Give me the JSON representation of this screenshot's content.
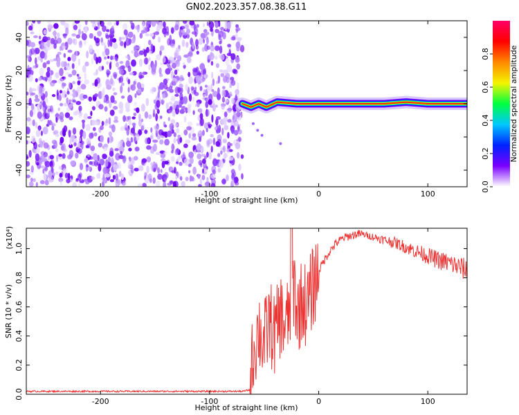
{
  "title": "GN02.2023.357.08.38.G11",
  "colors": {
    "snr_line": "#ee3333",
    "axis": "#000000",
    "colormap": [
      "#ffffff",
      "#7a00ff",
      "#0022ff",
      "#00c8ff",
      "#00ff40",
      "#f4f400",
      "#ff8800",
      "#ff0000",
      "#ff0066"
    ]
  },
  "chart_data": [
    {
      "type": "heatmap",
      "xlabel": "Height of straight line (km)",
      "ylabel": "Frequency (Hz)",
      "xlim": [
        -268,
        136
      ],
      "ylim": [
        -50,
        50
      ],
      "x_ticks": [
        -200,
        -100,
        0,
        100
      ],
      "x_tick_labels": [
        "-200",
        "-100",
        "0",
        "100"
      ],
      "y_ticks": [
        -40,
        -20,
        0,
        20,
        40
      ],
      "y_tick_labels": [
        "-40",
        "-20",
        "0",
        "20",
        "40"
      ],
      "noise_region_x": [
        -268,
        -70
      ],
      "signal_line": {
        "frequency_hz": 0,
        "x_range": [
          -70,
          136
        ],
        "center_offsets": [
          {
            "x": -70,
            "y": 0
          },
          {
            "x": -62,
            "y": -2
          },
          {
            "x": -55,
            "y": 0
          },
          {
            "x": -48,
            "y": -2
          },
          {
            "x": -38,
            "y": 1
          },
          {
            "x": -20,
            "y": 0
          },
          {
            "x": 0,
            "y": 0
          },
          {
            "x": 30,
            "y": 0
          },
          {
            "x": 60,
            "y": 0
          },
          {
            "x": 80,
            "y": 1
          },
          {
            "x": 100,
            "y": 0
          },
          {
            "x": 136,
            "y": 0
          }
        ]
      },
      "colorbar": {
        "label": "Normalized spectral amplitude",
        "range": [
          0,
          1
        ],
        "ticks": [
          0.0,
          0.2,
          0.4,
          0.6,
          0.8
        ],
        "tick_labels": [
          "0.0",
          "0.2",
          "0.4",
          "0.6",
          "0.8"
        ]
      }
    },
    {
      "type": "line",
      "xlabel": "Height of straight line (km)",
      "ylabel": "SNR (10 * v/v)",
      "y_multiplier": "(x10⁴)",
      "xlim": [
        -268,
        136
      ],
      "ylim": [
        0,
        1.14
      ],
      "x_ticks": [
        -200,
        -100,
        0,
        100
      ],
      "x_tick_labels": [
        "-200",
        "-100",
        "0",
        "100"
      ],
      "y_ticks": [
        0.0,
        0.2,
        0.4,
        0.6,
        0.8,
        1.0
      ],
      "y_tick_labels": [
        "0.0",
        "0.2",
        "0.4",
        "0.6",
        "0.8",
        "1.0"
      ],
      "series": [
        {
          "x": [
            -268,
            -240,
            -200,
            -150,
            -100,
            -70,
            -63,
            -60,
            -55,
            -50,
            -45,
            -40,
            -35,
            -30,
            -25,
            -22,
            -20,
            -15,
            -10,
            -5,
            0,
            5,
            10,
            15,
            20,
            25,
            30,
            35,
            40,
            45,
            50,
            60,
            70,
            80,
            90,
            100,
            110,
            120,
            130,
            136
          ],
          "y": [
            0.02,
            0.02,
            0.02,
            0.02,
            0.02,
            0.02,
            0.03,
            0.3,
            0.45,
            0.35,
            0.5,
            0.4,
            0.55,
            0.45,
            0.65,
            0.75,
            0.55,
            0.65,
            0.6,
            0.75,
            0.85,
            0.92,
            0.98,
            1.03,
            1.06,
            1.08,
            1.09,
            1.1,
            1.1,
            1.09,
            1.08,
            1.06,
            1.04,
            1.01,
            0.98,
            0.95,
            0.92,
            0.9,
            0.87,
            0.85
          ]
        }
      ]
    }
  ]
}
